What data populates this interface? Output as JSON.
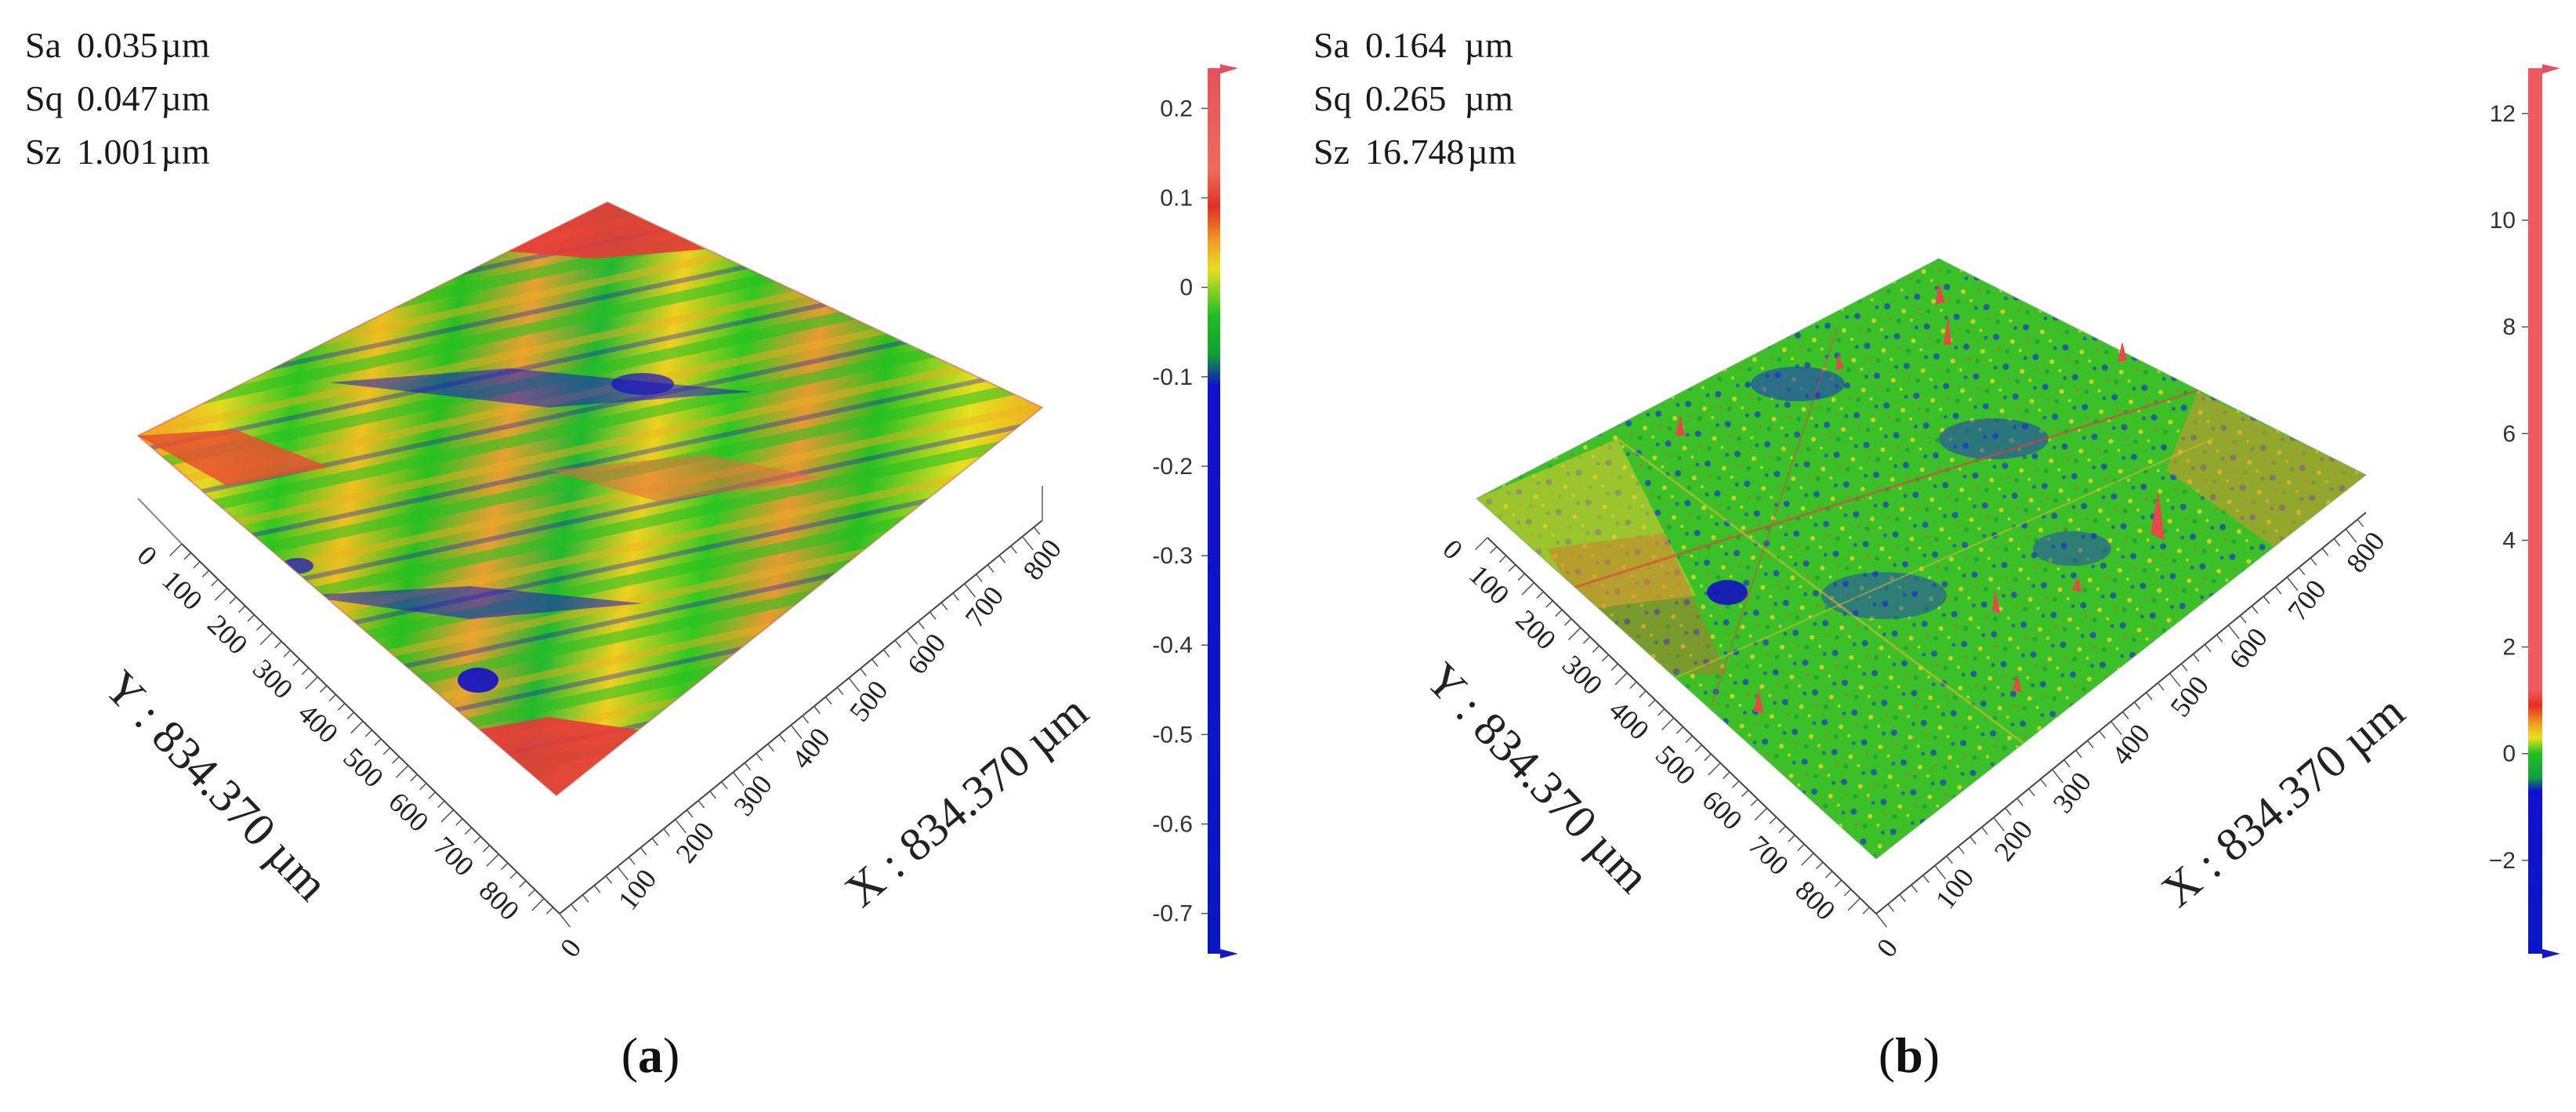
{
  "chart_data": [
    {
      "type": "3d-surface",
      "panel_label": "a",
      "stats": [
        {
          "name": "Sa",
          "value": "0.035",
          "unit": "µm"
        },
        {
          "name": "Sq",
          "value": "0.047",
          "unit": "µm"
        },
        {
          "name": "Sz",
          "value": "1.001",
          "unit": "µm"
        }
      ],
      "x_axis": {
        "label": "X : 834.370 µm",
        "ticks": [
          0,
          100,
          200,
          300,
          400,
          500,
          600,
          700,
          800
        ],
        "range": [
          0,
          834.37
        ]
      },
      "y_axis": {
        "label": "Y : 834.370 µm",
        "ticks": [
          0,
          100,
          200,
          300,
          400,
          500,
          600,
          700,
          800
        ],
        "range": [
          0,
          834.37
        ]
      },
      "colorbar": {
        "ticks": [
          "0.2",
          "0.1",
          "0",
          "-0.1",
          "-0.2",
          "-0.3",
          "-0.4",
          "-0.5",
          "-0.6",
          "-0.7"
        ],
        "tick_values": [
          0.2,
          0.1,
          0,
          -0.1,
          -0.2,
          -0.3,
          -0.4,
          -0.5,
          -0.6,
          -0.7
        ],
        "range": [
          -0.745,
          0.245
        ],
        "gradient": [
          {
            "v": 0.245,
            "color": "#e8505a"
          },
          {
            "v": 0.13,
            "color": "#f06a5a"
          },
          {
            "v": 0.09,
            "color": "#e23020"
          },
          {
            "v": 0.05,
            "color": "#f0a020"
          },
          {
            "v": 0.02,
            "color": "#e6e020"
          },
          {
            "v": -0.03,
            "color": "#20c020"
          },
          {
            "v": -0.075,
            "color": "#10a030"
          },
          {
            "v": -0.11,
            "color": "#1010d0"
          },
          {
            "v": -0.745,
            "color": "#0818c8"
          }
        ]
      }
    },
    {
      "type": "3d-surface",
      "panel_label": "b",
      "stats": [
        {
          "name": "Sa",
          "value": "0.164",
          "unit": "µm"
        },
        {
          "name": "Sq",
          "value": "0.265",
          "unit": "µm"
        },
        {
          "name": "Sz",
          "value": "16.748",
          "unit": "µm"
        }
      ],
      "x_axis": {
        "label": "X : 834.370 µm",
        "ticks": [
          0,
          100,
          200,
          300,
          400,
          500,
          600,
          700,
          800
        ],
        "range": [
          0,
          834.37
        ]
      },
      "y_axis": {
        "label": "Y : 834.370 µm",
        "ticks": [
          0,
          100,
          200,
          300,
          400,
          500,
          600,
          700,
          800
        ],
        "range": [
          0,
          834.37
        ]
      },
      "colorbar": {
        "ticks": [
          "12",
          "10",
          "8",
          "6",
          "4",
          "2",
          "0",
          "−2"
        ],
        "tick_values": [
          12,
          10,
          8,
          6,
          4,
          2,
          0,
          -2
        ],
        "range": [
          -3.75,
          12.85
        ],
        "gradient": [
          {
            "v": 12.85,
            "color": "#f05a5e"
          },
          {
            "v": 1.2,
            "color": "#f05a5e"
          },
          {
            "v": 0.9,
            "color": "#e43020"
          },
          {
            "v": 0.55,
            "color": "#f0a020"
          },
          {
            "v": 0.3,
            "color": "#e8e020"
          },
          {
            "v": 0.0,
            "color": "#20c020"
          },
          {
            "v": -0.45,
            "color": "#10a040"
          },
          {
            "v": -0.7,
            "color": "#1010d0"
          },
          {
            "v": -3.75,
            "color": "#0818c8"
          }
        ]
      }
    }
  ]
}
